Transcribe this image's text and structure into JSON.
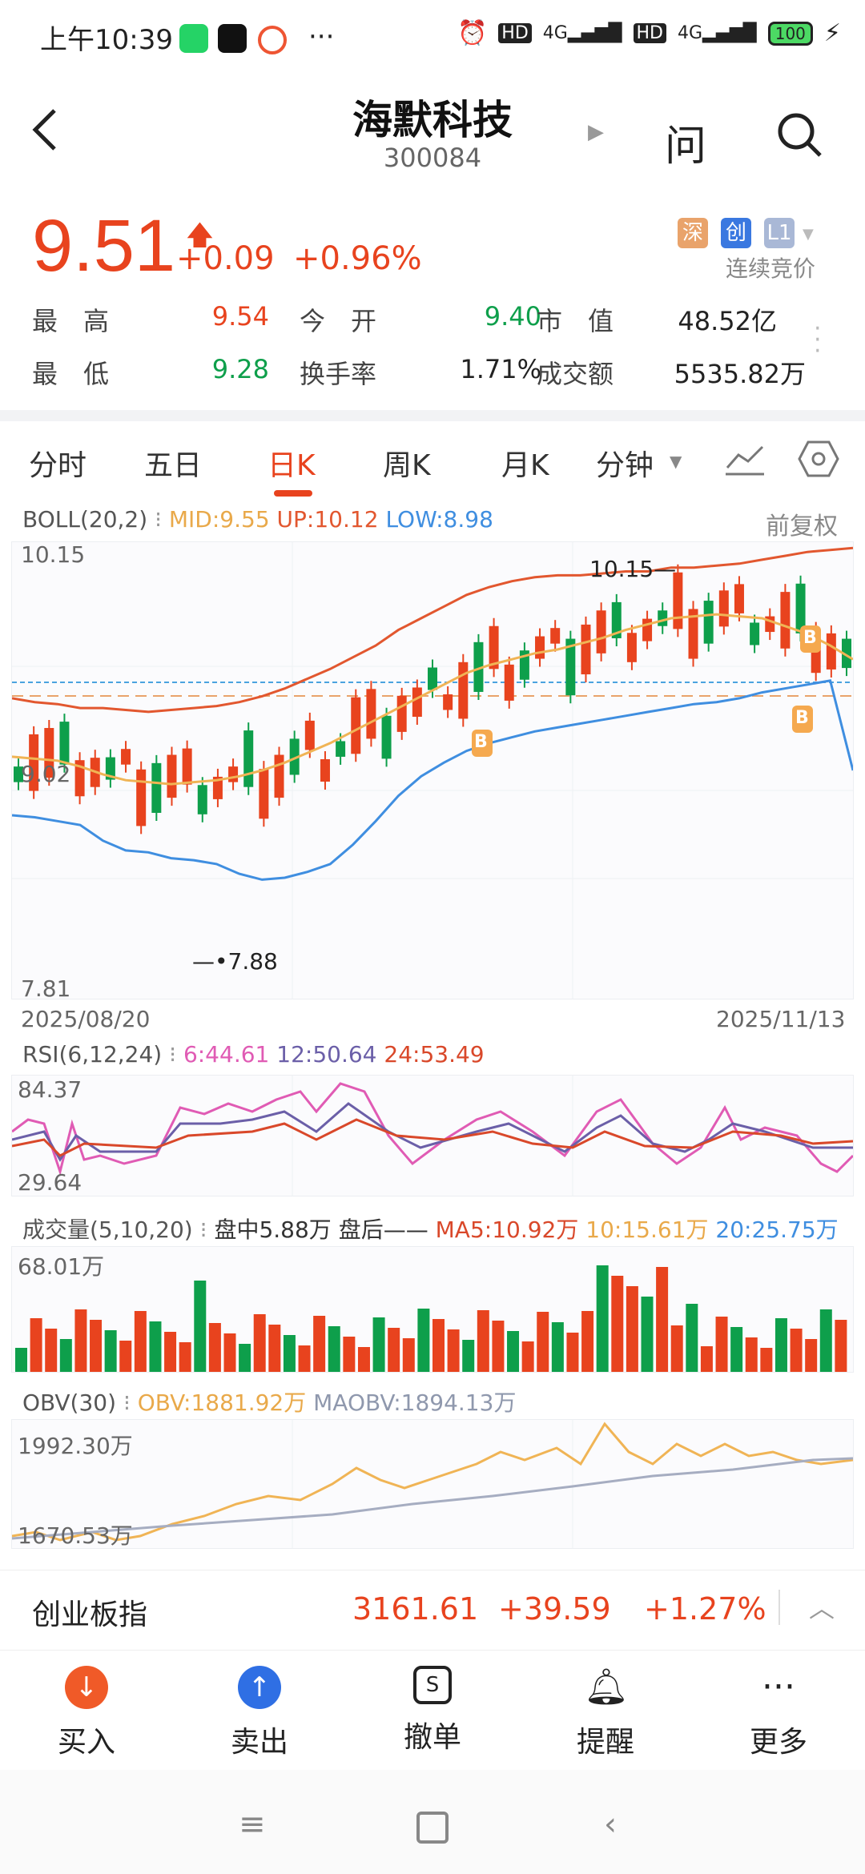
{
  "status": {
    "time": "上午10:39",
    "battery": "100",
    "net1": "4G",
    "net2": "4G",
    "hd1": "HD",
    "hd2": "HD"
  },
  "header": {
    "title": "海默科技",
    "code": "300084"
  },
  "quote": {
    "price": "9.51",
    "change": "+0.09",
    "change_pct": "+0.96%",
    "tag1": "深",
    "tag2": "创",
    "tag3": "L1",
    "mode": "连续竞价",
    "rows": [
      [
        {
          "l": "最　高",
          "v": "9.54",
          "c": "red"
        },
        {
          "l": "今　开",
          "v": "9.40",
          "c": "green"
        },
        {
          "l": "市　值",
          "v": "48.52亿",
          "c": "dark"
        }
      ],
      [
        {
          "l": "最　低",
          "v": "9.28",
          "c": "green"
        },
        {
          "l": "换手率",
          "v": "1.71%",
          "c": "dark"
        },
        {
          "l": "成交额",
          "v": "5535.82万",
          "c": "dark"
        }
      ]
    ]
  },
  "tabs": [
    {
      "label": "分时"
    },
    {
      "label": "五日"
    },
    {
      "label": "日K"
    },
    {
      "label": "周K"
    },
    {
      "label": "月K"
    },
    {
      "label": "分钟"
    }
  ],
  "boll": {
    "name": "BOLL(20,2)",
    "mid": "MID:9.55",
    "up": "UP:10.12",
    "low": "LOW:8.98",
    "adjust": "前复权",
    "ymax": "10.15",
    "ymid": "9.02",
    "ymin": "7.81",
    "hi_mark": "10.15",
    "lo_mark": "7.88",
    "date_start": "2025/08/20",
    "date_end": "2025/11/13",
    "b_label": "B"
  },
  "rsi": {
    "name": "RSI(6,12,24)",
    "r6": "6:44.61",
    "r12": "12:50.64",
    "r24": "24:53.49",
    "ymax": "84.37",
    "ymin": "29.64"
  },
  "vol": {
    "name": "成交量(5,10,20)",
    "mid": "盘中5.88万",
    "after": "盘后——",
    "ma5": "MA5:10.92万",
    "ma10": "10:15.61万",
    "ma20": "20:25.75万",
    "ymax": "68.01万"
  },
  "obv": {
    "name": "OBV(30)",
    "obv": "OBV:1881.92万",
    "maobv": "MAOBV:1894.13万",
    "ymax": "1992.30万",
    "ymin": "1670.53万"
  },
  "index": {
    "name": "创业板指",
    "value": "3161.61",
    "change": "+39.59",
    "pct": "+1.27%"
  },
  "actions": [
    {
      "label": "买入",
      "icon": "arrow-down-icon",
      "color": "#f05a28"
    },
    {
      "label": "卖出",
      "icon": "arrow-up-icon",
      "color": "#2f6fe4"
    },
    {
      "label": "撤单",
      "icon": "cancel-order-icon"
    },
    {
      "label": "提醒",
      "icon": "bell-icon"
    },
    {
      "label": "更多",
      "icon": "more-icon"
    }
  ],
  "chart_data": {
    "type": "line",
    "title": "",
    "x_start": "2025/08/20",
    "x_end": "2025/11/13",
    "ylim": [
      7.81,
      10.15
    ],
    "series": [
      {
        "name": "UP",
        "values": [
          9.35,
          9.33,
          9.32,
          9.3,
          9.3,
          9.29,
          9.28,
          9.29,
          9.3,
          9.31,
          9.33,
          9.36,
          9.4,
          9.45,
          9.5,
          9.56,
          9.62,
          9.7,
          9.76,
          9.82,
          9.88,
          9.92,
          9.95,
          9.97,
          9.98,
          9.98,
          9.99,
          10.0,
          10.0,
          10.02,
          10.02,
          10.03,
          10.04,
          10.06,
          10.08,
          10.1,
          10.11,
          10.12
        ]
      },
      {
        "name": "MID",
        "values": [
          9.05,
          9.04,
          9.03,
          9.0,
          8.96,
          8.93,
          8.92,
          8.91,
          8.92,
          8.93,
          8.95,
          8.98,
          9.02,
          9.07,
          9.12,
          9.18,
          9.24,
          9.3,
          9.36,
          9.42,
          9.48,
          9.52,
          9.55,
          9.58,
          9.6,
          9.63,
          9.66,
          9.7,
          9.73,
          9.76,
          9.77,
          9.78,
          9.77,
          9.76,
          9.72,
          9.68,
          9.62,
          9.55
        ]
      },
      {
        "name": "LOW",
        "values": [
          8.75,
          8.74,
          8.72,
          8.7,
          8.62,
          8.57,
          8.56,
          8.53,
          8.52,
          8.5,
          8.45,
          8.42,
          8.43,
          8.46,
          8.5,
          8.6,
          8.72,
          8.85,
          8.95,
          9.02,
          9.08,
          9.12,
          9.15,
          9.18,
          9.2,
          9.22,
          9.24,
          9.26,
          9.28,
          9.3,
          9.32,
          9.33,
          9.35,
          9.38,
          9.4,
          9.42,
          9.44,
          8.98
        ]
      }
    ]
  }
}
